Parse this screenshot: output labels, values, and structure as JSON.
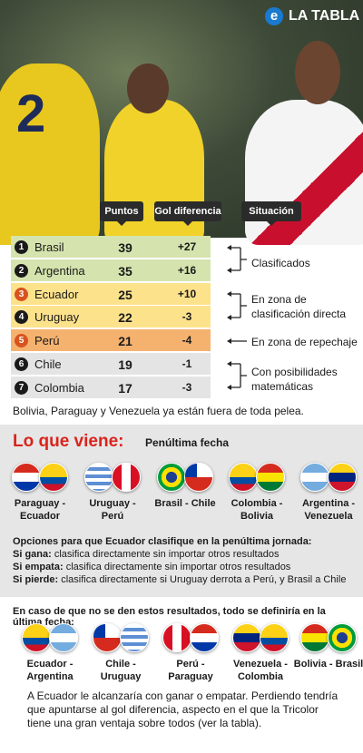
{
  "header": {
    "logo": "e",
    "brand": "LA TABLA"
  },
  "table": {
    "columns": [
      "Puntos",
      "Gol diferencia",
      "Situación"
    ],
    "rows": [
      {
        "rank": 1,
        "team": "Brasil",
        "points": 39,
        "goal_difference": "+27"
      },
      {
        "rank": 2,
        "team": "Argentina",
        "points": 35,
        "goal_difference": "+16"
      },
      {
        "rank": 3,
        "team": "Ecuador",
        "points": 25,
        "goal_difference": "+10"
      },
      {
        "rank": 4,
        "team": "Uruguay",
        "points": 22,
        "goal_difference": "-3"
      },
      {
        "rank": 5,
        "team": "Perú",
        "points": 21,
        "goal_difference": "-4"
      },
      {
        "rank": 6,
        "team": "Chile",
        "points": 19,
        "goal_difference": "-1"
      },
      {
        "rank": 7,
        "team": "Colombia",
        "points": 17,
        "goal_difference": "-3"
      }
    ]
  },
  "situations": [
    "Clasificados",
    "En zona de clasificación directa",
    "En zona de repechaje",
    "Con posibilidades matemáticas"
  ],
  "note": "Bolivia, Paraguay y Venezuela ya están fuera de toda pelea.",
  "next": {
    "title": "Lo que viene:",
    "subtitle": "Penúltima fecha",
    "matches": [
      "Paraguay - Ecuador",
      "Uruguay - Perú",
      "Brasil - Chile",
      "Colombia - Bolivia",
      "Argentina - Venezuela"
    ]
  },
  "options": {
    "title": "Opciones para que Ecuador clasifique en la penúltima jornada:",
    "items": [
      {
        "label": "Si gana:",
        "text": "clasifica directamente sin importar otros resultados"
      },
      {
        "label": "Si empata:",
        "text": "clasifica directamente sin importar otros resultados"
      },
      {
        "label": "Si pierde:",
        "text": "clasifica directamente si Uruguay derrota a Perú, y Brasil a Chile"
      }
    ]
  },
  "last": {
    "title": "En caso de que no se den estos resultados, todo se definiría en la última fecha:",
    "matches": [
      "Ecuador - Argentina",
      "Chile - Uruguay",
      "Perú - Paraguay",
      "Venezuela - Colombia",
      "Bolivia - Brasil"
    ],
    "text": "A Ecuador le alcanzaría con ganar o empatar. Perdiendo tendría que apuntarse al gol diferencia, aspecto en el que la Tricolor tiene una gran ventaja sobre todos (ver la tabla)."
  }
}
